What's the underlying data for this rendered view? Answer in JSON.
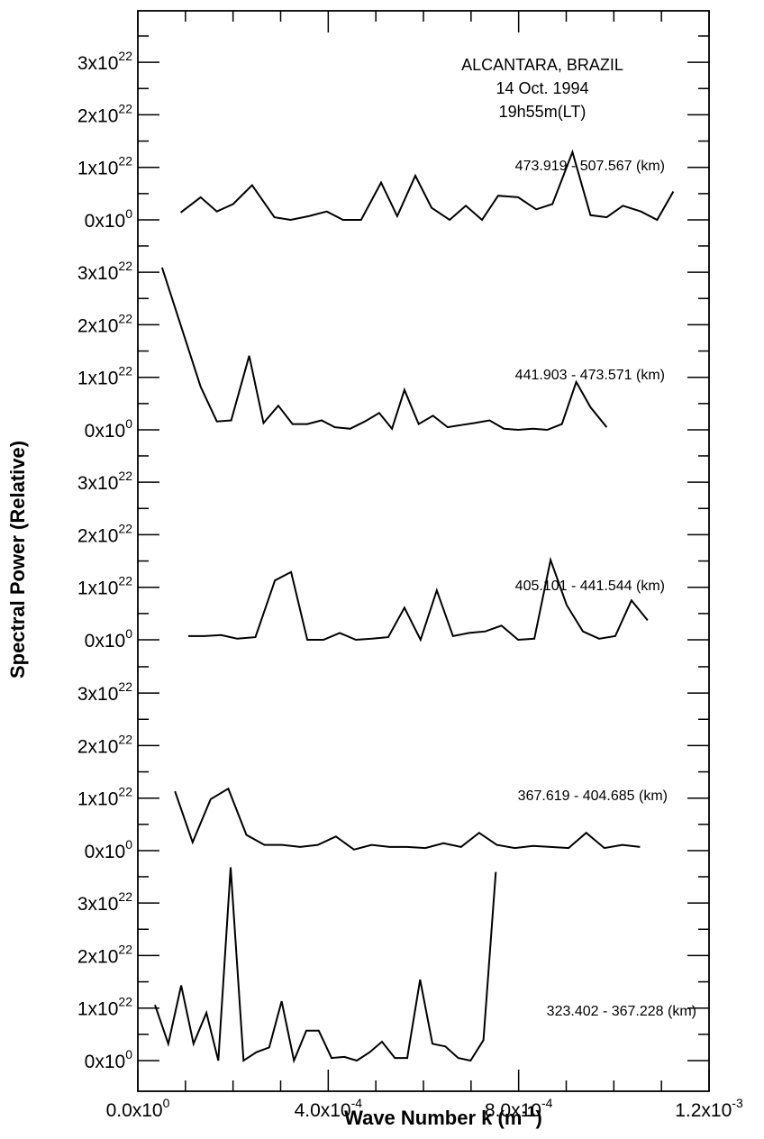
{
  "chart_data": {
    "type": "line",
    "title": "",
    "xlabel": "Wave Number k (m-1)",
    "xlabel_parts": {
      "text": "Wave Number k (m",
      "sup": "-1",
      "close": ")"
    },
    "ylabel": "Spectral Power (Relative)",
    "xlim": [
      0,
      0.0012
    ],
    "x_ticks": [
      {
        "value": 0,
        "mantissa": "0.0x10",
        "exp": "0"
      },
      {
        "value": 0.0004,
        "mantissa": "4.0x10",
        "exp": "-4"
      },
      {
        "value": 0.0008,
        "mantissa": "8.0x10",
        "exp": "-4"
      },
      {
        "value": 0.0012,
        "mantissa": "1.2x10",
        "exp": "-3"
      }
    ],
    "panel_ylim": [
      0,
      3.5e+22
    ],
    "y_ticks": [
      {
        "value": 0,
        "mantissa": "0x10",
        "exp": "0"
      },
      {
        "value": 1e+22,
        "mantissa": "1x10",
        "exp": "22"
      },
      {
        "value": 2e+22,
        "mantissa": "2x10",
        "exp": "22"
      },
      {
        "value": 3e+22,
        "mantissa": "3x10",
        "exp": "22"
      }
    ],
    "annotation": [
      "ALCANTARA, BRAZIL",
      "14 Oct. 1994",
      "19h55m(LT)"
    ],
    "grid": false,
    "series": [
      {
        "name": "473.919 - 507.567 (km)",
        "x": [
          9e-05,
          0.000132,
          0.000166,
          0.0002,
          0.00024,
          0.000287,
          0.000321,
          0.000359,
          0.000397,
          0.000431,
          0.000469,
          0.000511,
          0.000545,
          0.000583,
          0.000617,
          0.000655,
          0.000689,
          0.000723,
          0.000757,
          0.000799,
          0.000837,
          0.000871,
          0.000913,
          0.000951,
          0.000985,
          0.001019,
          0.001057,
          0.001091,
          0.001125
        ],
        "y": [
          1.4e+21,
          4.3e+21,
          1.6e+21,
          3e+21,
          6.6e+21,
          5e+20,
          0.0,
          7e+20,
          1.6e+21,
          0.0,
          0.0,
          7.1e+21,
          7e+20,
          8.4e+21,
          2.3e+21,
          0.0,
          2.7e+21,
          0.0,
          4.6e+21,
          4.3e+21,
          2e+21,
          3e+21,
          1.29e+22,
          9e+20,
          5e+20,
          2.7e+21,
          1.6e+21,
          0.0,
          5.4e+21
        ]
      },
      {
        "name": "441.903 - 473.571 (km)",
        "x": [
          5.1e-05,
          0.000132,
          0.000166,
          0.000196,
          0.000234,
          0.000264,
          0.000295,
          0.000325,
          0.000356,
          0.000386,
          0.000414,
          0.000446,
          0.000477,
          0.000507,
          0.000534,
          0.00056,
          0.00059,
          0.00062,
          0.000651,
          0.000678,
          0.000708,
          0.000739,
          0.000769,
          0.000799,
          0.00083,
          0.00086,
          0.000891,
          0.000921,
          0.000951,
          0.000985
        ],
        "y": [
          3.09e+22,
          8.2e+21,
          1.6e+21,
          1.8e+21,
          1.41e+22,
          1.3e+21,
          4.6e+21,
          1.1e+21,
          1.1e+21,
          1.8e+21,
          5e+20,
          2e+20,
          1.6e+21,
          3.2e+21,
          2e+20,
          7.6e+21,
          1.1e+21,
          2.7e+21,
          5e+20,
          9e+20,
          1.3e+21,
          1.8e+21,
          2e+20,
          0.0,
          2e+20,
          0.0,
          1.1e+21,
          9.1e+21,
          4.3e+21,
          5e+20
        ]
      },
      {
        "name": "405.101 - 441.544 (km)",
        "x": [
          0.000106,
          0.00014,
          0.000175,
          0.000209,
          0.000247,
          0.000288,
          0.000322,
          0.000356,
          0.00039,
          0.000424,
          0.000458,
          0.000492,
          0.000526,
          0.00056,
          0.000594,
          0.000628,
          0.000662,
          0.000696,
          0.00073,
          0.000764,
          0.000799,
          0.000833,
          0.000867,
          0.000901,
          0.000935,
          0.000969,
          0.001003,
          0.001037,
          0.001071
        ],
        "y": [
          7e+20,
          7e+20,
          9e+20,
          2e+20,
          5e+20,
          1.13e+22,
          1.29e+22,
          0.0,
          0.0,
          1.3e+21,
          0.0,
          2e+20,
          5e+20,
          6.1e+21,
          0.0,
          9.4e+21,
          7e+20,
          1.3e+21,
          1.6e+21,
          2.7e+21,
          0.0,
          2e+20,
          1.52e+22,
          6.6e+21,
          1.6e+21,
          2e+20,
          7e+20,
          7.5e+21,
          3.7e+21
        ]
      },
      {
        "name": "367.619 - 404.685 (km)",
        "x": [
          7.8e-05,
          0.000115,
          0.000153,
          0.00019,
          0.000228,
          0.000266,
          0.000303,
          0.000341,
          0.000378,
          0.000416,
          0.000454,
          0.000491,
          0.000529,
          0.000566,
          0.000604,
          0.000642,
          0.000679,
          0.000717,
          0.000754,
          0.000792,
          0.00083,
          0.000867,
          0.000905,
          0.000942,
          0.00098,
          0.001018,
          0.001055
        ],
        "y": [
          1.13e+22,
          1.6e+21,
          9.8e+21,
          1.18e+22,
          3e+21,
          1.1e+21,
          1.1e+21,
          7e+20,
          1.1e+21,
          2.7e+21,
          2e+20,
          1.1e+21,
          7e+20,
          7e+20,
          5e+20,
          1.4e+21,
          7e+20,
          3.4e+21,
          1.1e+21,
          5e+20,
          9e+20,
          7e+20,
          5e+20,
          3.4e+21,
          5e+20,
          1.1e+21,
          7e+20
        ]
      },
      {
        "name": "323.402 - 367.228 (km)",
        "x": [
          3.6e-05,
          6.4e-05,
          9.1e-05,
          0.000117,
          0.000144,
          0.000169,
          0.000195,
          0.000222,
          0.000249,
          0.000276,
          0.000302,
          0.000328,
          0.000354,
          0.00038,
          0.000407,
          0.000434,
          0.00046,
          0.000487,
          0.000513,
          0.00054,
          0.000566,
          0.000593,
          0.000619,
          0.000646,
          0.000673,
          0.000699,
          0.000726,
          0.000752
        ],
        "y": [
          1.06e+22,
          3.2e+21,
          1.43e+22,
          3.2e+21,
          9.1e+21,
          0.0,
          3.68e+22,
          0.0,
          1.6e+21,
          2.5e+21,
          1.13e+22,
          0.0,
          5.7e+21,
          5.7e+21,
          5e+20,
          7e+20,
          0.0,
          1.6e+21,
          3.6e+21,
          5e+20,
          5e+20,
          1.54e+22,
          3.2e+21,
          2.7e+21,
          5e+20,
          0.0,
          3.9e+21,
          3.59e+22
        ]
      }
    ]
  }
}
